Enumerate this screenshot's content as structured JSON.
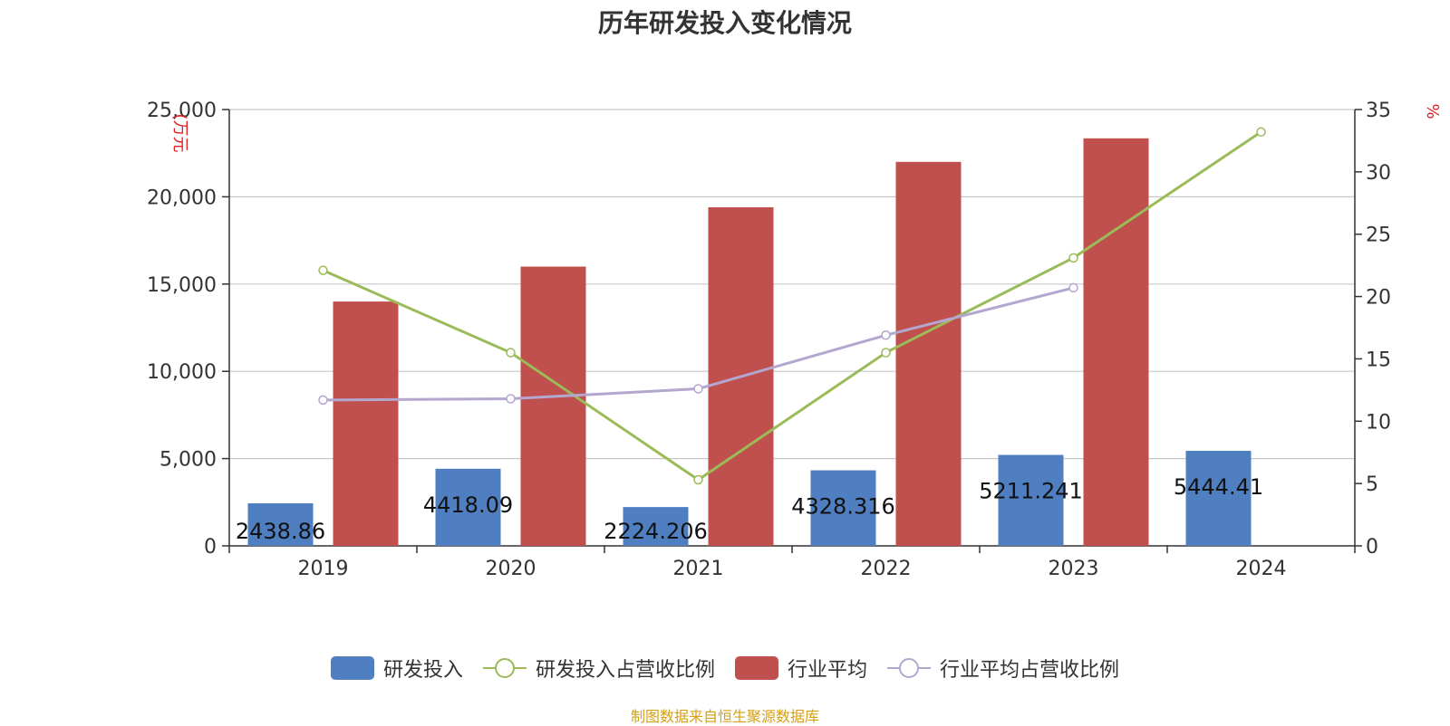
{
  "chart_data": {
    "type": "bar",
    "title": "历年研发投入变化情况",
    "categories": [
      "2019",
      "2020",
      "2021",
      "2022",
      "2023",
      "2024"
    ],
    "y_left": {
      "label": "(万元",
      "lim": [
        0,
        25000
      ],
      "ticks": [
        0,
        5000,
        10000,
        15000,
        20000,
        25000
      ],
      "tick_labels": [
        "0",
        "5,000",
        "10,000",
        "15,000",
        "20,000",
        "25,000"
      ]
    },
    "y_right": {
      "label": "%",
      "lim": [
        0,
        35
      ],
      "ticks": [
        0,
        5,
        10,
        15,
        20,
        25,
        30,
        35
      ],
      "tick_labels": [
        "0",
        "5",
        "10",
        "15",
        "20",
        "25",
        "30",
        "35"
      ]
    },
    "grid": true,
    "legend_position": "bottom",
    "series": [
      {
        "name": "研发投入",
        "kind": "bar",
        "axis": "left",
        "color": "#4f7fc0",
        "values": [
          2438.86,
          4418.09,
          2224.206,
          4328.316,
          5211.241,
          5444.41
        ],
        "labels": [
          "2438.86",
          "4418.09",
          "2224.206",
          "4328.316",
          "5211.241",
          "5444.41"
        ]
      },
      {
        "name": "研发投入占营收比例",
        "kind": "line",
        "axis": "right",
        "color": "#9bbb59",
        "values": [
          22.1,
          15.5,
          5.3,
          15.5,
          23.1,
          33.2
        ]
      },
      {
        "name": "行业平均",
        "kind": "bar",
        "axis": "left",
        "color": "#c0504d",
        "values": [
          14000,
          16000,
          19400,
          22000,
          23350,
          null
        ]
      },
      {
        "name": "行业平均占营收比例",
        "kind": "line",
        "axis": "right",
        "color": "#b3a6cf",
        "values": [
          11.7,
          11.8,
          12.6,
          16.9,
          20.7,
          null
        ]
      }
    ]
  },
  "source_note": "制图数据来自恒生聚源数据库"
}
